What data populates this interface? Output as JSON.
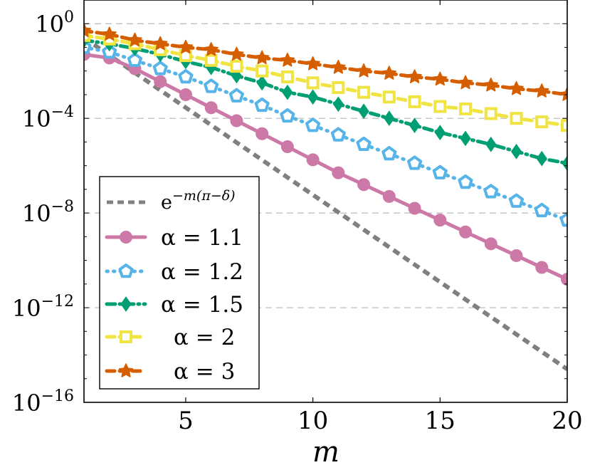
{
  "chart_data": {
    "type": "line",
    "xlabel": "m",
    "ylabel": "",
    "title": "",
    "xlim": [
      1,
      20
    ],
    "ylog": true,
    "ylim_exponent": [
      -16,
      1
    ],
    "grid": "horizontal dashed at major y ticks",
    "legend_position": "bottom-left",
    "x_ticks": [
      5,
      10,
      15,
      20
    ],
    "x_tick_labels": [
      "5",
      "10",
      "15",
      "20"
    ],
    "y_ticks_exponent": [
      0,
      -4,
      -8,
      -12,
      -16
    ],
    "y_tick_labels": [
      "10^0",
      "10^-4",
      "10^-8",
      "10^-12",
      "10^-16"
    ],
    "legend": {
      "reference": "e^{-m(π-δ)}",
      "series_labels": [
        "α = 1.1",
        "α = 1.2",
        "α = 1.5",
        "α = 2",
        "α = 3"
      ]
    },
    "reference_line": {
      "name": "e^{-m(π-δ)}",
      "color": "#808080",
      "style": "dashed",
      "x": [
        1,
        20
      ],
      "log10_y": [
        -0.6,
        -14.6
      ]
    },
    "x": [
      1,
      2,
      3,
      4,
      5,
      6,
      7,
      8,
      9,
      10,
      11,
      12,
      13,
      14,
      15,
      16,
      17,
      18,
      19,
      20
    ],
    "series": [
      {
        "name": "α = 1.1",
        "color": "#cc79a7",
        "marker": "circle",
        "dash": "solid",
        "log10_y": [
          -1.3,
          -1.45,
          -1.9,
          -2.45,
          -3.0,
          -3.55,
          -4.1,
          -4.65,
          -5.2,
          -5.75,
          -6.3,
          -6.8,
          -7.3,
          -7.8,
          -8.3,
          -8.8,
          -9.3,
          -9.8,
          -10.3,
          -10.8
        ]
      },
      {
        "name": "α = 1.2",
        "color": "#56b4e9",
        "marker": "pentagon",
        "dash": "dotted",
        "log10_y": [
          -1.0,
          -1.2,
          -1.55,
          -1.9,
          -2.25,
          -2.65,
          -3.05,
          -3.45,
          -3.9,
          -4.3,
          -4.7,
          -5.1,
          -5.5,
          -5.9,
          -6.3,
          -6.7,
          -7.1,
          -7.5,
          -7.9,
          -8.3
        ]
      },
      {
        "name": "α = 1.5",
        "color": "#009e73",
        "marker": "diamond",
        "dash": "dashdot",
        "log10_y": [
          -0.7,
          -0.85,
          -1.05,
          -1.3,
          -1.6,
          -1.85,
          -2.2,
          -2.5,
          -2.9,
          -3.1,
          -3.4,
          -3.7,
          -4.0,
          -4.3,
          -4.6,
          -4.85,
          -5.1,
          -5.4,
          -5.7,
          -5.9
        ]
      },
      {
        "name": "α = 2",
        "color": "#f0e442",
        "marker": "square",
        "dash": "dashed",
        "log10_y": [
          -0.5,
          -0.65,
          -0.85,
          -1.1,
          -1.35,
          -1.55,
          -1.8,
          -2.0,
          -2.25,
          -2.5,
          -2.7,
          -2.9,
          -3.1,
          -3.3,
          -3.5,
          -3.6,
          -3.8,
          -4.0,
          -4.15,
          -4.3
        ]
      },
      {
        "name": "α = 3",
        "color": "#d55e00",
        "marker": "star",
        "dash": "dashed",
        "log10_y": [
          -0.3,
          -0.45,
          -0.7,
          -0.85,
          -1.0,
          -1.1,
          -1.3,
          -1.45,
          -1.55,
          -1.7,
          -1.85,
          -2.0,
          -2.1,
          -2.25,
          -2.35,
          -2.5,
          -2.6,
          -2.75,
          -2.85,
          -3.0
        ]
      }
    ]
  }
}
